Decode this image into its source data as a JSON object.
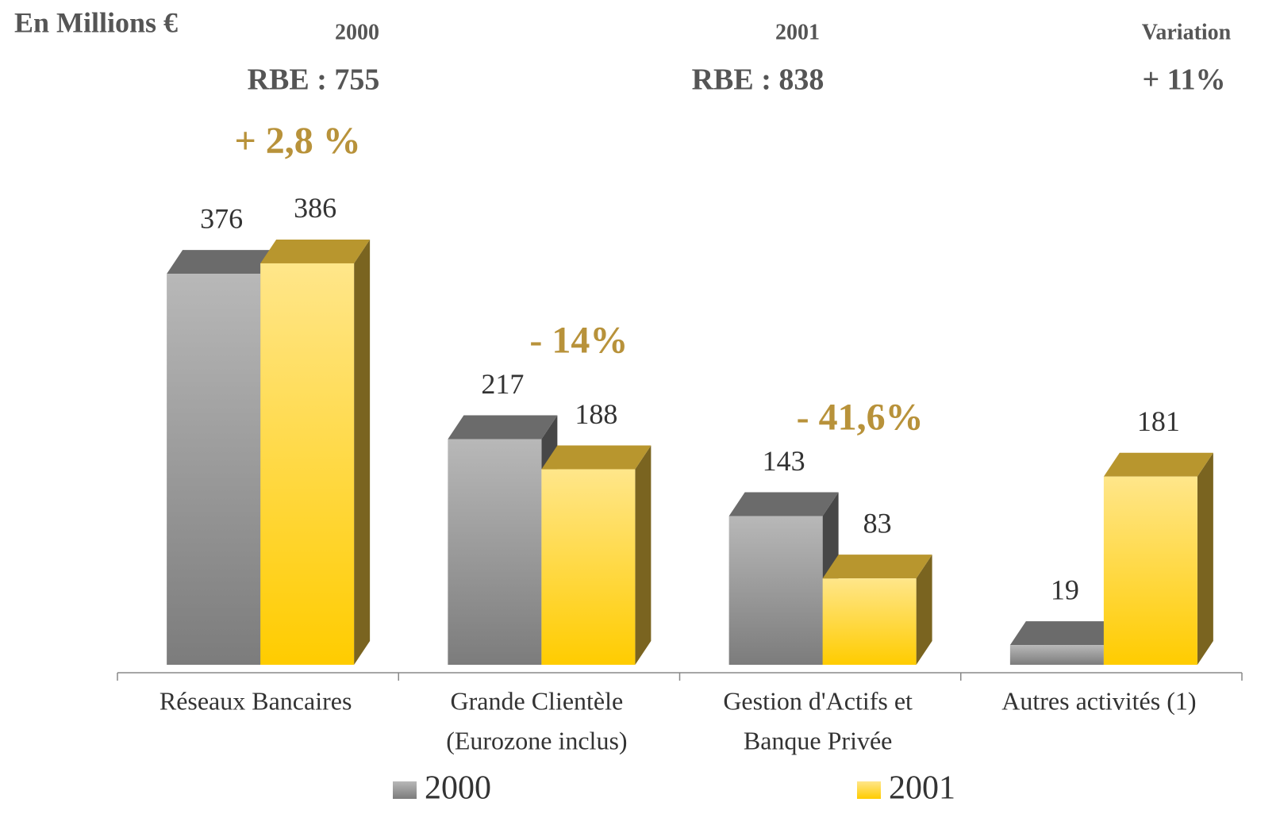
{
  "header": {
    "unit": "En Millions €",
    "columns": [
      {
        "label": "2000",
        "value_text": "RBE : 755"
      },
      {
        "label": "2001",
        "value_text": "RBE : 838"
      },
      {
        "label": "Variation",
        "value_text": "+ 11%"
      }
    ]
  },
  "chart_data": {
    "type": "bar3d",
    "categories": [
      [
        "Réseaux Bancaires"
      ],
      [
        "Grande Clientèle",
        "(Eurozone inclus)"
      ],
      [
        "Gestion d'Actifs et",
        "Banque Privée"
      ],
      [
        "Autres activités (1)"
      ]
    ],
    "series": [
      {
        "name": "2000",
        "color": "#999999",
        "values": [
          376,
          217,
          143,
          19
        ]
      },
      {
        "name": "2001",
        "color": "#ffd633",
        "values": [
          386,
          188,
          83,
          181
        ]
      }
    ],
    "annotations": [
      "+ 2,8 %",
      "- 14%",
      "- 41,6%"
    ],
    "ylim": [
      0,
      400
    ]
  }
}
